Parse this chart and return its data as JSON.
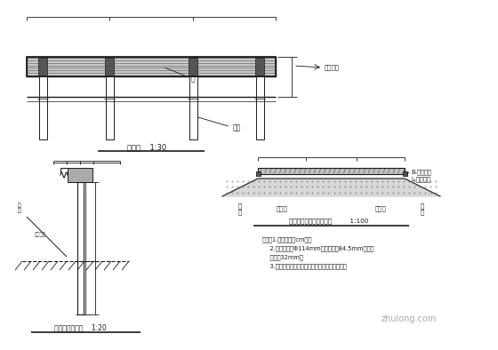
{
  "bg_color": "#ffffff",
  "line_color": "#1a1a1a",
  "label_立面图": "立面图    1:30",
  "label_路侧护栏": "路侧护栏大样图    1:20",
  "label_标准断面": "标准断面护栏安设位置图         1:100",
  "label_板": "板",
  "label_立柱": "立柱",
  "label_路肩标宽": "路肩标宽",
  "label_B": "B-路肩宽度",
  "label_L": "L-路基宽度",
  "label_路肩L": "路\n肩",
  "label_路肩R": "路\n肩",
  "label_行车道1": "行车道",
  "label_行车道2": "行车道",
  "label_说明1": "说明：1.本图尺寸以cm计。",
  "label_说明2": "    2.立柱直径为Φ114mm，立柱壁厔84.5mm，波形",
  "label_说明3": "    钉板厘32mm。",
  "label_说明4": "    3.本图适用于土路路基安设钉板式护栏的情况。",
  "watermark": "zhulong.com",
  "label_护坡": "护坡",
  "label_护坡底线": "护坡底线"
}
